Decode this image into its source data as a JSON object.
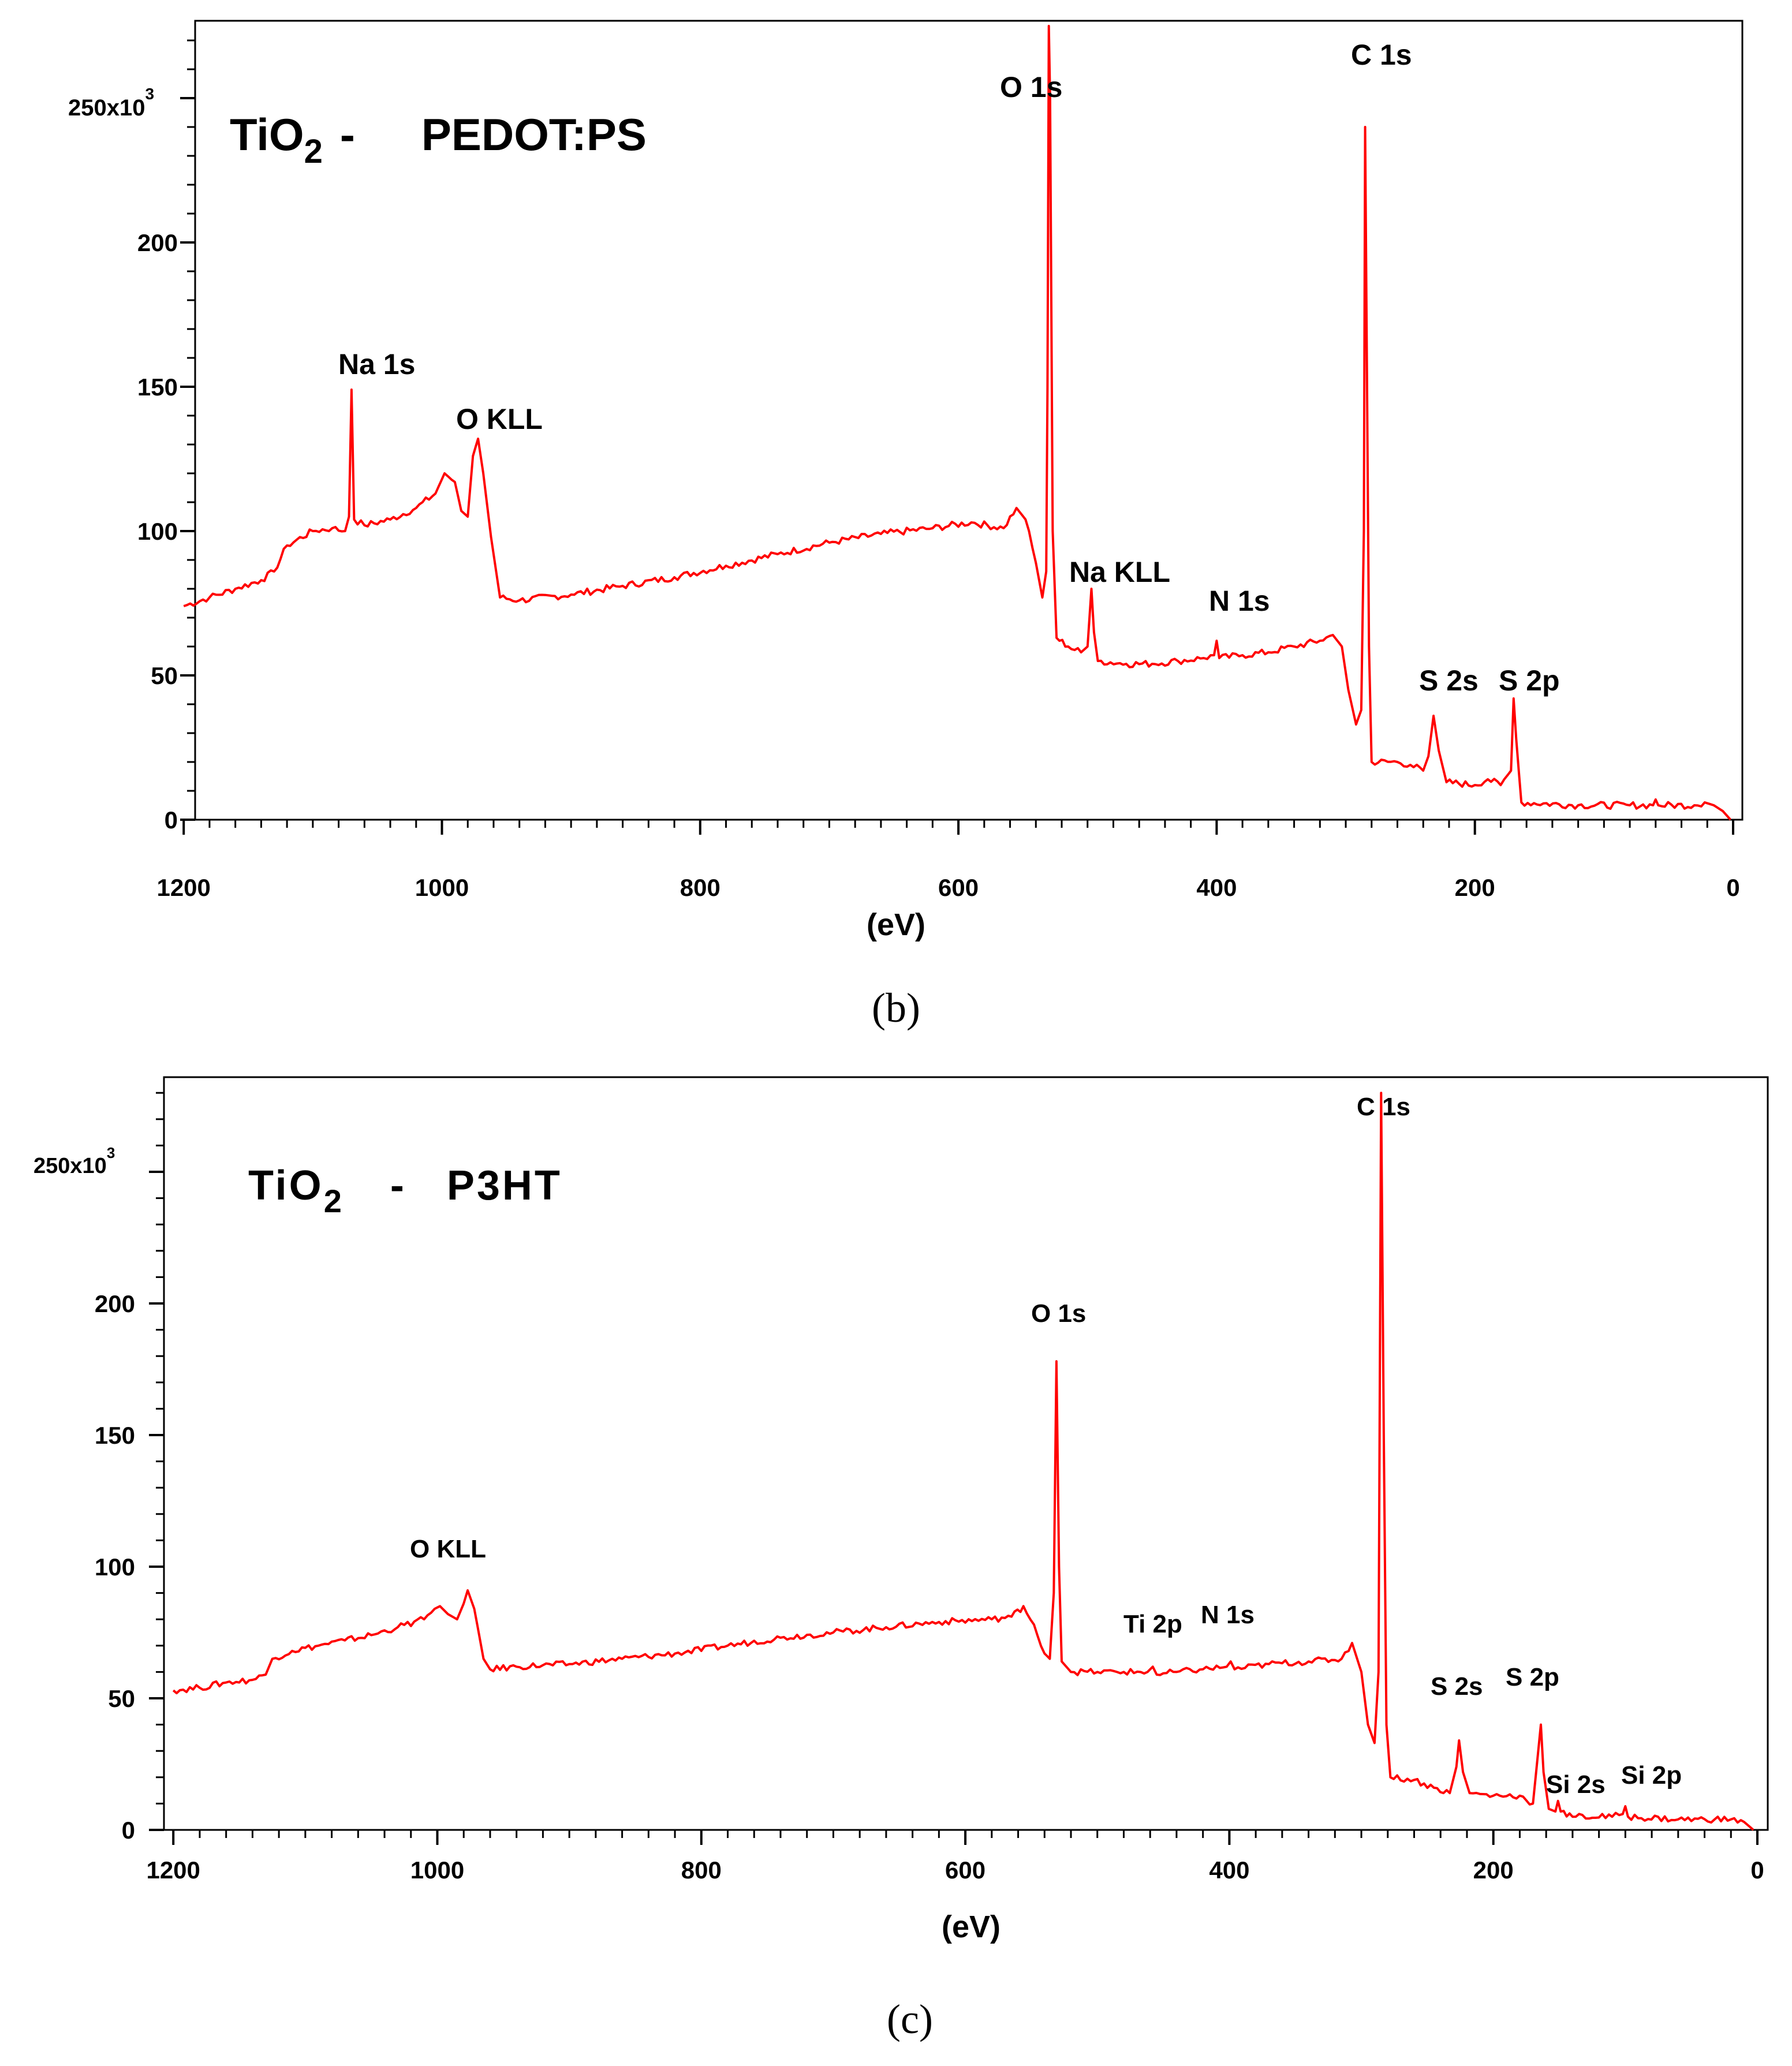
{
  "colors": {
    "trace": "#ff0000",
    "axis": "#000000",
    "background": "#ffffff"
  },
  "chart_data": [
    {
      "type": "line",
      "panel_label": "(b)",
      "sample": {
        "prefix": "TiO",
        "subscript": "2",
        "separator": "-",
        "material": "PEDOT:PS"
      },
      "xlabel": "(eV)",
      "ylabel": "",
      "xlim": [
        1200,
        0
      ],
      "ylim": [
        0,
        275000
      ],
      "x_ticks": [
        "1200",
        "1000",
        "800",
        "600",
        "400",
        "200",
        "0"
      ],
      "y_ticks": [
        "0",
        "50",
        "100",
        "150",
        "200"
      ],
      "y_scale_label": {
        "base": "250x10",
        "exp": "3"
      },
      "series": [
        {
          "name": "TiO2 - PEDOT:PS",
          "points": [
            [
              1200,
              74000
            ],
            [
              1180,
              77000
            ],
            [
              1160,
              80000
            ],
            [
              1140,
              83000
            ],
            [
              1130,
              86000
            ],
            [
              1120,
              95000
            ],
            [
              1100,
              100000
            ],
            [
              1085,
              101000
            ],
            [
              1075,
              100000
            ],
            [
              1072,
              105000
            ],
            [
              1070,
              149000
            ],
            [
              1068,
              104000
            ],
            [
              1060,
              102000
            ],
            [
              1040,
              104000
            ],
            [
              1020,
              108000
            ],
            [
              1005,
              113000
            ],
            [
              998,
              120000
            ],
            [
              990,
              117000
            ],
            [
              985,
              107000
            ],
            [
              980,
              105000
            ],
            [
              976,
              126000
            ],
            [
              972,
              132000
            ],
            [
              968,
              120000
            ],
            [
              962,
              98000
            ],
            [
              955,
              77000
            ],
            [
              940,
              76000
            ],
            [
              900,
              78000
            ],
            [
              860,
              81000
            ],
            [
              820,
              84000
            ],
            [
              780,
              88000
            ],
            [
              740,
              92000
            ],
            [
              700,
              96000
            ],
            [
              660,
              99000
            ],
            [
              620,
              101000
            ],
            [
              590,
              103000
            ],
            [
              565,
              101000
            ],
            [
              555,
              108000
            ],
            [
              548,
              104000
            ],
            [
              540,
              89000
            ],
            [
              535,
              77000
            ],
            [
              532,
              86000
            ],
            [
              531,
              150000
            ],
            [
              530,
              275000
            ],
            [
              529,
              250000
            ],
            [
              527,
              100000
            ],
            [
              524,
              63000
            ],
            [
              515,
              60000
            ],
            [
              505,
              58000
            ],
            [
              500,
              60000
            ],
            [
              497,
              80000
            ],
            [
              495,
              65000
            ],
            [
              492,
              55000
            ],
            [
              470,
              54000
            ],
            [
              450,
              54000
            ],
            [
              430,
              55000
            ],
            [
              410,
              56000
            ],
            [
              402,
              57000
            ],
            [
              400,
              62000
            ],
            [
              398,
              56000
            ],
            [
              380,
              57000
            ],
            [
              360,
              58000
            ],
            [
              340,
              60000
            ],
            [
              320,
              62000
            ],
            [
              310,
              64000
            ],
            [
              303,
              60000
            ],
            [
              298,
              45000
            ],
            [
              292,
              33000
            ],
            [
              288,
              38000
            ],
            [
              286,
              100000
            ],
            [
              285,
              240000
            ],
            [
              284,
              180000
            ],
            [
              282,
              60000
            ],
            [
              280,
              20000
            ],
            [
              260,
              20000
            ],
            [
              250,
              19000
            ],
            [
              240,
              17000
            ],
            [
              236,
              22000
            ],
            [
              232,
              36000
            ],
            [
              228,
              24000
            ],
            [
              222,
              13000
            ],
            [
              200,
              12000
            ],
            [
              190,
              14000
            ],
            [
              180,
              12000
            ],
            [
              172,
              17000
            ],
            [
              170,
              42000
            ],
            [
              168,
              28000
            ],
            [
              164,
              6000
            ],
            [
              120,
              5000
            ],
            [
              80,
              5000
            ],
            [
              62,
              5000
            ],
            [
              60,
              7000
            ],
            [
              58,
              5000
            ],
            [
              30,
              5000
            ],
            [
              22,
              6000
            ],
            [
              15,
              5000
            ],
            [
              8,
              3000
            ],
            [
              2,
              0
            ]
          ]
        }
      ],
      "annotations": [
        {
          "text": "Na 1s",
          "x": 1070,
          "y": 149000
        },
        {
          "text": "O KLL",
          "x": 972,
          "y": 132000
        },
        {
          "text": "O 1s",
          "x": 530,
          "y": 275000
        },
        {
          "text": "Na KLL",
          "x": 497,
          "y": 80000
        },
        {
          "text": "N 1s",
          "x": 400,
          "y": 62000
        },
        {
          "text": "C 1s",
          "x": 285,
          "y": 240000
        },
        {
          "text": "S 2s",
          "x": 232,
          "y": 36000
        },
        {
          "text": "S 2p",
          "x": 170,
          "y": 42000
        }
      ]
    },
    {
      "type": "line",
      "panel_label": "(c)",
      "sample": {
        "prefix": "TiO",
        "subscript": "2",
        "separator": "-",
        "material": "P3HT"
      },
      "xlabel": "(eV)",
      "ylabel": "",
      "xlim": [
        1200,
        0
      ],
      "ylim": [
        0,
        280000
      ],
      "x_ticks": [
        "1200",
        "1000",
        "800",
        "600",
        "400",
        "200",
        "0"
      ],
      "y_ticks": [
        "0",
        "50",
        "100",
        "150",
        "200"
      ],
      "y_scale_label": {
        "base": "250x10",
        "exp": "3"
      },
      "series": [
        {
          "name": "TiO2 - P3HT",
          "points": [
            [
              1200,
              53000
            ],
            [
              1180,
              54000
            ],
            [
              1160,
              56000
            ],
            [
              1140,
              57000
            ],
            [
              1130,
              59000
            ],
            [
              1125,
              65000
            ],
            [
              1110,
              68000
            ],
            [
              1090,
              70000
            ],
            [
              1070,
              72000
            ],
            [
              1050,
              74000
            ],
            [
              1030,
              77000
            ],
            [
              1010,
              80000
            ],
            [
              1002,
              84000
            ],
            [
              998,
              85000
            ],
            [
              992,
              82000
            ],
            [
              985,
              80000
            ],
            [
              980,
              86000
            ],
            [
              977,
              91000
            ],
            [
              972,
              84000
            ],
            [
              965,
              65000
            ],
            [
              960,
              61000
            ],
            [
              940,
              62000
            ],
            [
              900,
              63000
            ],
            [
              860,
              65000
            ],
            [
              820,
              67000
            ],
            [
              780,
              70000
            ],
            [
              740,
              73000
            ],
            [
              700,
              75000
            ],
            [
              660,
              77000
            ],
            [
              620,
              79000
            ],
            [
              580,
              80000
            ],
            [
              565,
              81000
            ],
            [
              556,
              85000
            ],
            [
              548,
              78000
            ],
            [
              540,
              67000
            ],
            [
              536,
              65000
            ],
            [
              533,
              90000
            ],
            [
              531,
              178000
            ],
            [
              529,
              100000
            ],
            [
              527,
              64000
            ],
            [
              520,
              60000
            ],
            [
              500,
              60000
            ],
            [
              480,
              60000
            ],
            [
              462,
              60000
            ],
            [
              458,
              62000
            ],
            [
              455,
              59000
            ],
            [
              440,
              60000
            ],
            [
              420,
              61000
            ],
            [
              402,
              62000
            ],
            [
              399,
              64000
            ],
            [
              396,
              61000
            ],
            [
              370,
              63000
            ],
            [
              340,
              64000
            ],
            [
              315,
              65000
            ],
            [
              307,
              71000
            ],
            [
              300,
              60000
            ],
            [
              295,
              40000
            ],
            [
              290,
              33000
            ],
            [
              287,
              60000
            ],
            [
              285,
              280000
            ],
            [
              283,
              150000
            ],
            [
              281,
              40000
            ],
            [
              278,
              20000
            ],
            [
              260,
              19000
            ],
            [
              245,
              16000
            ],
            [
              233,
              14000
            ],
            [
              228,
              24000
            ],
            [
              226,
              34000
            ],
            [
              223,
              22000
            ],
            [
              218,
              14000
            ],
            [
              200,
              13000
            ],
            [
              180,
              13000
            ],
            [
              170,
              10000
            ],
            [
              167,
              25000
            ],
            [
              164,
              40000
            ],
            [
              162,
              22000
            ],
            [
              158,
              8000
            ],
            [
              153,
              7000
            ],
            [
              151,
              11000
            ],
            [
              149,
              7000
            ],
            [
              140,
              5000
            ],
            [
              110,
              5000
            ],
            [
              102,
              6000
            ],
            [
              100,
              9000
            ],
            [
              98,
              5000
            ],
            [
              60,
              4000
            ],
            [
              20,
              4000
            ],
            [
              10,
              3000
            ],
            [
              3,
              0
            ]
          ]
        }
      ],
      "annotations": [
        {
          "text": "O KLL",
          "x": 977,
          "y": 91000
        },
        {
          "text": "O 1s",
          "x": 531,
          "y": 178000
        },
        {
          "text": "Ti 2p",
          "x": 458,
          "y": 62000
        },
        {
          "text": "N 1s",
          "x": 399,
          "y": 64000
        },
        {
          "text": "C 1s",
          "x": 285,
          "y": 280000
        },
        {
          "text": "S 2s",
          "x": 226,
          "y": 34000
        },
        {
          "text": "S 2p",
          "x": 164,
          "y": 40000
        },
        {
          "text": "Si 2s",
          "x": 151,
          "y": 11000
        },
        {
          "text": "Si 2p",
          "x": 100,
          "y": 9000
        }
      ]
    }
  ]
}
